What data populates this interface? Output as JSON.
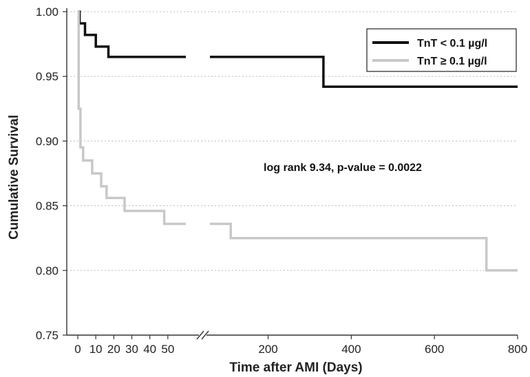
{
  "chart_data": {
    "type": "line",
    "step": true,
    "xlabel": "Time after AMI (Days)",
    "ylabel": "Cumulative Survival",
    "ylim": [
      0.75,
      1.0
    ],
    "yticks": [
      "0.75",
      "0.80",
      "0.85",
      "0.90",
      "0.95",
      "1.00"
    ],
    "x_broken_axis": true,
    "x_segments": [
      {
        "range": [
          0,
          60
        ],
        "ticks": [
          "0",
          "10",
          "20",
          "30",
          "40",
          "50"
        ]
      },
      {
        "range": [
          60,
          800
        ],
        "ticks": [
          "200",
          "400",
          "600",
          "800"
        ]
      }
    ],
    "grid": "horizontal-dotted",
    "legend_position": "top-right",
    "annotation": "log rank 9.34, p-value = 0.0022",
    "series": [
      {
        "name": "TnT < 0.1 µg/l",
        "color": "#111111",
        "points": [
          [
            0,
            1.0
          ],
          [
            1,
            0.991
          ],
          [
            4,
            0.982
          ],
          [
            10,
            0.973
          ],
          [
            17,
            0.965
          ],
          [
            333,
            0.965
          ],
          [
            333,
            0.942
          ],
          [
            800,
            0.942
          ]
        ]
      },
      {
        "name": "TnT ≥ 0.1 µg/l",
        "color": "#c8c8c8",
        "points": [
          [
            0,
            1.0
          ],
          [
            0.5,
            0.925
          ],
          [
            1.5,
            0.895
          ],
          [
            3,
            0.885
          ],
          [
            8,
            0.875
          ],
          [
            13,
            0.865
          ],
          [
            16,
            0.856
          ],
          [
            26,
            0.846
          ],
          [
            48,
            0.836
          ],
          [
            110,
            0.836
          ],
          [
            110,
            0.825
          ],
          [
            725,
            0.825
          ],
          [
            725,
            0.8
          ],
          [
            800,
            0.8
          ]
        ]
      }
    ]
  }
}
